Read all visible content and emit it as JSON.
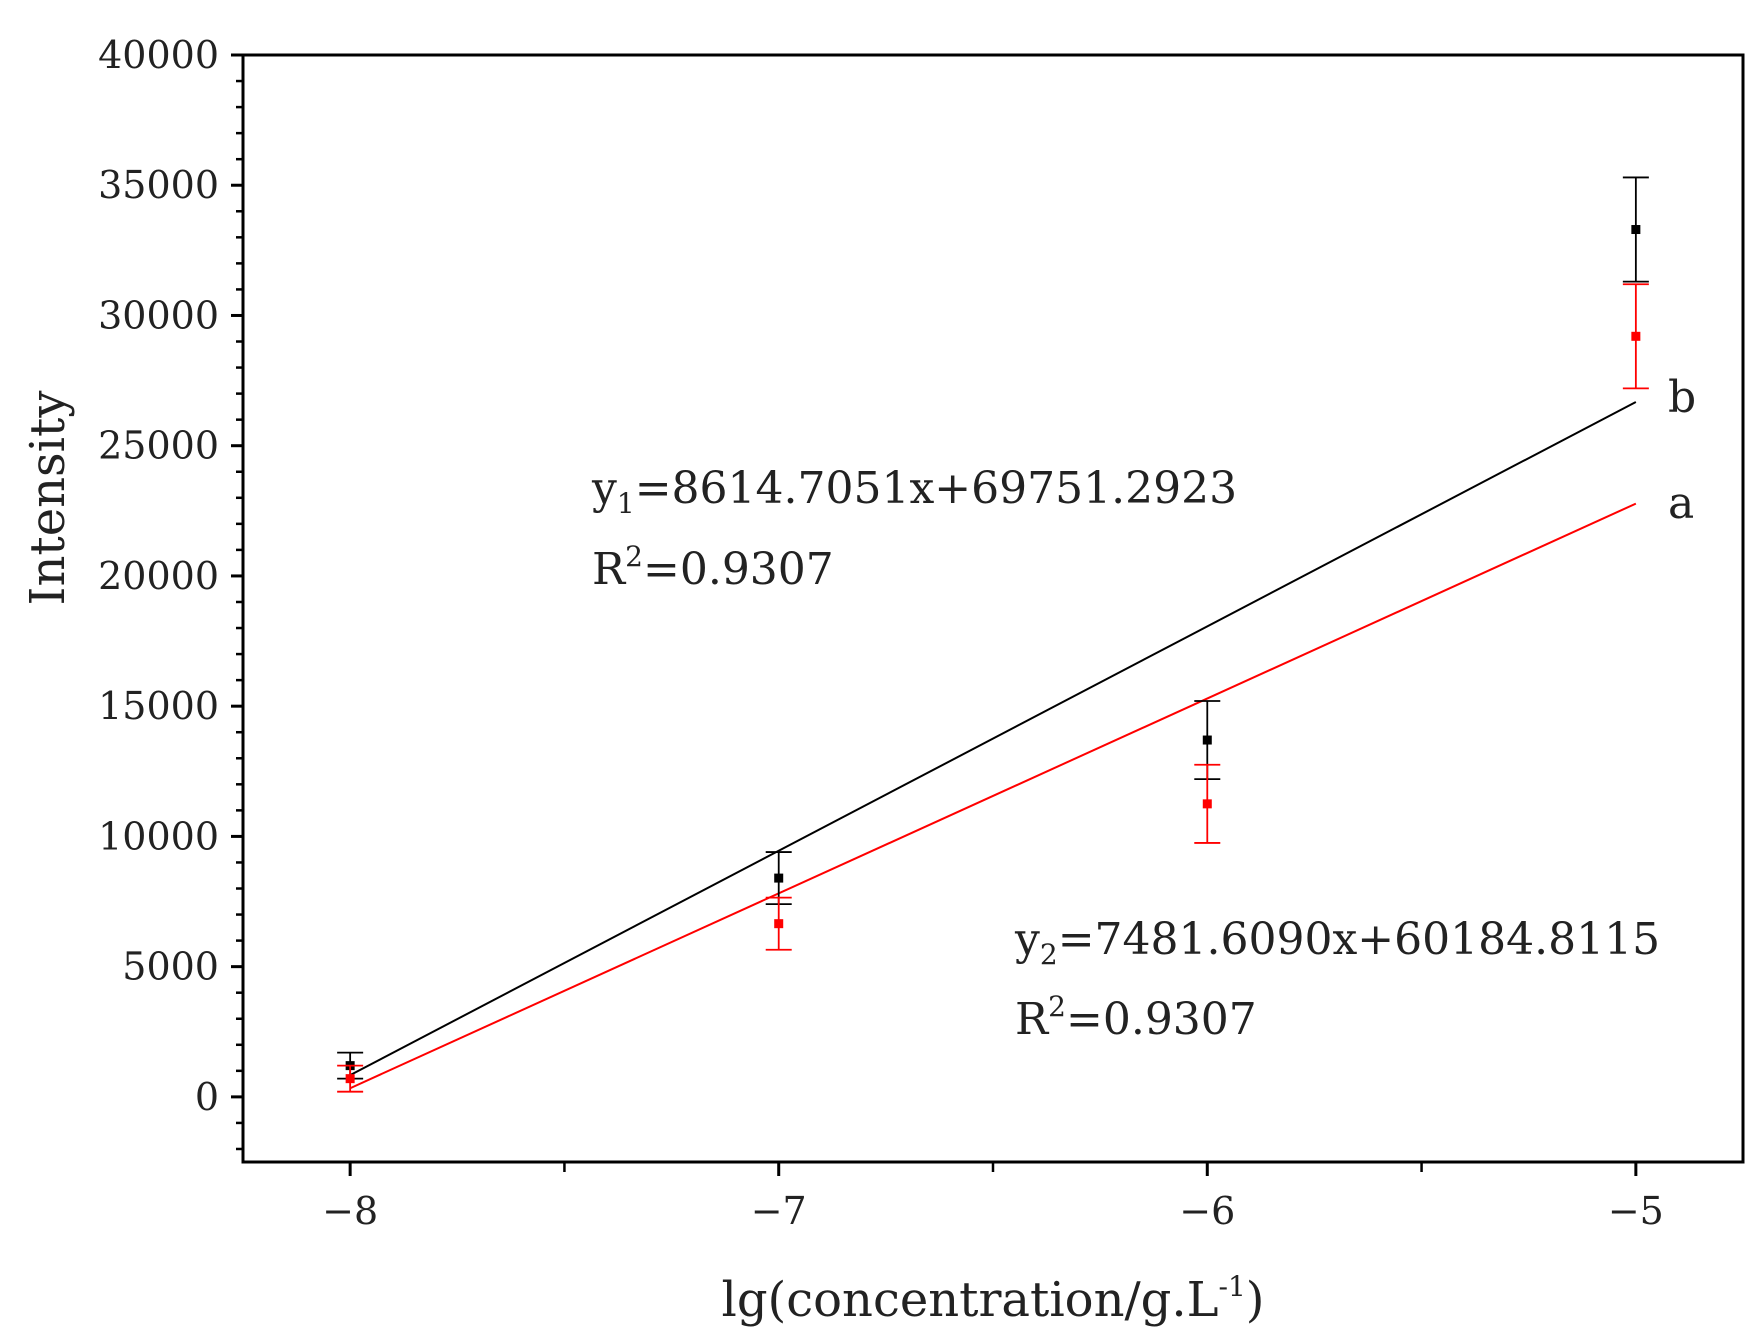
{
  "chart_data": {
    "type": "scatter",
    "xlabel": "lg(concentration/g.L",
    "xlabel_superscript": "-1",
    "xlabel_suffix": ")",
    "ylabel": "Intensity",
    "xlim": [
      -8.25,
      -4.75
    ],
    "ylim": [
      -2500,
      40000
    ],
    "xticks": [
      -8,
      -7,
      -6,
      -5
    ],
    "xtick_labels": [
      "−8",
      "−7",
      "−6",
      "−5"
    ],
    "yticks": [
      0,
      5000,
      10000,
      15000,
      20000,
      25000,
      30000,
      35000,
      40000
    ],
    "ytick_labels": [
      "0",
      "5000",
      "10000",
      "15000",
      "20000",
      "25000",
      "30000",
      "35000",
      "40000"
    ],
    "grid": false,
    "series": [
      {
        "label": "b",
        "color": "#000000",
        "x": [
          -8,
          -7,
          -6,
          -5
        ],
        "y": [
          1200,
          8400,
          13700,
          33300
        ],
        "error": [
          500,
          1000,
          1500,
          2000
        ],
        "fit": {
          "slope": 8614.7051,
          "intercept": 69751.2923
        },
        "equation": {
          "y": "y",
          "sub": "1",
          "rhs": "=8614.7051x+69751.2923",
          "r": "R",
          "sup": "2",
          "r_rhs": "=0.9307"
        }
      },
      {
        "label": "a",
        "color": "#ff0000",
        "x": [
          -8,
          -7,
          -6,
          -5
        ],
        "y": [
          700,
          6650,
          11250,
          29200
        ],
        "error": [
          500,
          1000,
          1500,
          2000
        ],
        "fit": {
          "slope": 7481.609,
          "intercept": 60184.8115
        },
        "equation": {
          "y": "y",
          "sub": "2",
          "rhs": "=7481.6090x+60184.8115",
          "r": "R",
          "sup": "2",
          "r_rhs": "=0.9307"
        }
      }
    ]
  }
}
